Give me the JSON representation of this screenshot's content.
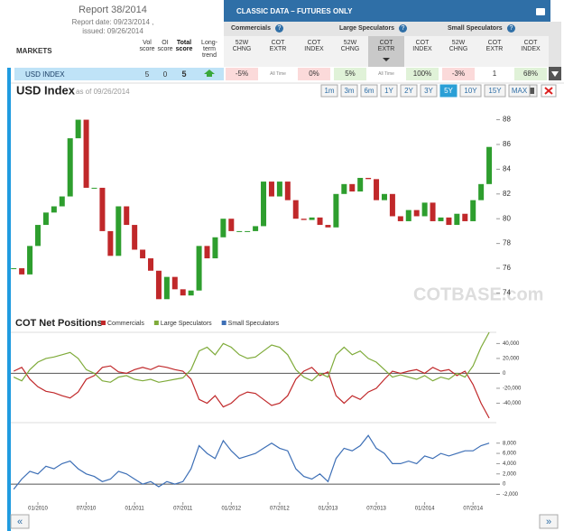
{
  "header": {
    "report": "Report 38/2014",
    "report_date": "Report date: 09/23/2014 ,",
    "issued": "issued: 09/26/2014",
    "panel_title": "CLASSIC DATA – FUTURES ONLY"
  },
  "table": {
    "columns": [
      "MARKETS",
      "Vol score",
      "OI score",
      "Total score",
      "Long-term trend"
    ],
    "groups": [
      {
        "name": "Commercials",
        "columns": [
          "52W CHNG",
          "COT EXTR",
          "COT INDEX"
        ]
      },
      {
        "name": "Large Speculators",
        "columns": [
          "52W CHNG",
          "COT EXTR",
          "COT INDEX"
        ]
      },
      {
        "name": "Small Speculators",
        "columns": [
          "52W CHNG",
          "COT EXTR",
          "COT INDEX"
        ]
      }
    ],
    "rows": [
      {
        "market": "USD INDEX",
        "vol_score": 5,
        "oi_score": 0,
        "total_score": 5,
        "cells": [
          "-5%",
          "All Time",
          "0%",
          "5%",
          "All Time",
          "100%",
          "-3%",
          "1",
          "68%"
        ]
      }
    ]
  },
  "toolbar": {
    "title": "USD Index",
    "as_of": "as of 09/26/2014",
    "ranges": [
      "1m",
      "3m",
      "6m",
      "1Y",
      "2Y",
      "3Y",
      "5Y",
      "10Y",
      "15Y",
      "MAX"
    ],
    "active_range": "5Y",
    "watermark": "COTBASE.com"
  },
  "chart_data": [
    {
      "type": "candlestick",
      "up_color": "#2e9e2e",
      "down_color": "#c0282a",
      "x": [
        "10/2009",
        "11/2009",
        "12/2009",
        "01/2010",
        "02/2010",
        "03/2010",
        "04/2010",
        "05/2010",
        "06/2010",
        "07/2010",
        "08/2010",
        "09/2010",
        "10/2010",
        "11/2010",
        "12/2010",
        "01/2011",
        "02/2011",
        "03/2011",
        "04/2011",
        "05/2011",
        "06/2011",
        "07/2011",
        "08/2011",
        "09/2011",
        "10/2011",
        "11/2011",
        "12/2011",
        "01/2012",
        "02/2012",
        "03/2012",
        "04/2012",
        "05/2012",
        "06/2012",
        "07/2012",
        "08/2012",
        "09/2012",
        "10/2012",
        "11/2012",
        "12/2012",
        "01/2013",
        "02/2013",
        "03/2013",
        "04/2013",
        "05/2013",
        "06/2013",
        "07/2013",
        "08/2013",
        "09/2013",
        "10/2013",
        "11/2013",
        "12/2013",
        "01/2014",
        "02/2014",
        "03/2014",
        "04/2014",
        "05/2014",
        "06/2014",
        "07/2014",
        "08/2014",
        "09/2014"
      ],
      "values": [
        76,
        75.5,
        77.8,
        79.5,
        80.5,
        81,
        81.8,
        86.5,
        88,
        82.5,
        82.5,
        79,
        77,
        81,
        79.5,
        77.5,
        76.8,
        75.8,
        73.5,
        75.3,
        74.3,
        73.8,
        74.2,
        77.8,
        76.8,
        78.5,
        80,
        79,
        79,
        79,
        79.4,
        83,
        81.8,
        83,
        81.5,
        80,
        79.9,
        80.1,
        79.5,
        79.3,
        82,
        82.8,
        82.2,
        83.3,
        83.2,
        81.5,
        82,
        80.2,
        79.8,
        80.7,
        80.2,
        81.3,
        79.8,
        80.1,
        79.5,
        80.4,
        79.8,
        81.5,
        82.8,
        85.8
      ],
      "ylim": [
        72.5,
        89.5
      ],
      "yticks": [
        74,
        76,
        78,
        80,
        82,
        84,
        86,
        88
      ]
    },
    {
      "type": "line",
      "title": "COT Net Positions",
      "x": [
        "10/2009",
        "11/2009",
        "12/2009",
        "01/2010",
        "02/2010",
        "03/2010",
        "04/2010",
        "05/2010",
        "06/2010",
        "07/2010",
        "08/2010",
        "09/2010",
        "10/2010",
        "11/2010",
        "12/2010",
        "01/2011",
        "02/2011",
        "03/2011",
        "04/2011",
        "05/2011",
        "06/2011",
        "07/2011",
        "08/2011",
        "09/2011",
        "10/2011",
        "11/2011",
        "12/2011",
        "01/2012",
        "02/2012",
        "03/2012",
        "04/2012",
        "05/2012",
        "06/2012",
        "07/2012",
        "08/2012",
        "09/2012",
        "10/2012",
        "11/2012",
        "12/2012",
        "01/2013",
        "02/2013",
        "03/2013",
        "04/2013",
        "05/2013",
        "06/2013",
        "07/2013",
        "08/2013",
        "09/2013",
        "10/2013",
        "11/2013",
        "12/2013",
        "01/2014",
        "02/2014",
        "03/2014",
        "04/2014",
        "05/2014",
        "06/2014",
        "07/2014",
        "08/2014",
        "09/2014"
      ],
      "xticks": [
        "01/2010",
        "07/2010",
        "01/2011",
        "07/2011",
        "01/2012",
        "07/2012",
        "01/2013",
        "07/2013",
        "01/2014",
        "07/2014"
      ],
      "panels": [
        {
          "ylim": [
            -60000,
            55000
          ],
          "yticks": [
            {
              "value": 40000,
              "label": "40,000"
            },
            {
              "value": 20000,
              "label": "20,000"
            },
            0,
            {
              "value": -20000,
              "label": "-20,000"
            },
            {
              "value": -40000,
              "label": "-40,000"
            }
          ],
          "series": [
            {
              "name": "Commercials",
              "color": "#c0282a",
              "values": [
                3000,
                8000,
                -8000,
                -18000,
                -24000,
                -26000,
                -30000,
                -33000,
                -25000,
                -8000,
                -3000,
                8000,
                10000,
                2000,
                0,
                5000,
                8000,
                5000,
                10000,
                8000,
                5000,
                3000,
                -8000,
                -35000,
                -40000,
                -30000,
                -45000,
                -40000,
                -30000,
                -25000,
                -27000,
                -35000,
                -43000,
                -40000,
                -30000,
                -8000,
                3000,
                8000,
                -3000,
                2000,
                -30000,
                -40000,
                -30000,
                -35000,
                -25000,
                -20000,
                -8000,
                3000,
                0,
                3000,
                5000,
                0,
                8000,
                3000,
                5000,
                -3000,
                3000,
                -15000,
                -40000,
                -60000
              ]
            },
            {
              "name": "Large Speculators",
              "color": "#7fab3a",
              "values": [
                -5000,
                -10000,
                5000,
                15000,
                20000,
                22000,
                25000,
                28000,
                20000,
                5000,
                0,
                -10000,
                -12000,
                -5000,
                -3000,
                -8000,
                -10000,
                -8000,
                -12000,
                -10000,
                -8000,
                -6000,
                5000,
                30000,
                35000,
                25000,
                40000,
                35000,
                25000,
                20000,
                22000,
                30000,
                38000,
                35000,
                25000,
                5000,
                -5000,
                -10000,
                0,
                -5000,
                25000,
                35000,
                25000,
                30000,
                20000,
                15000,
                5000,
                -5000,
                -2000,
                -5000,
                -8000,
                -3000,
                -10000,
                -5000,
                -8000,
                0,
                -5000,
                10000,
                35000,
                55000
              ]
            }
          ]
        },
        {
          "ylim": [
            -3500,
            12000
          ],
          "yticks": [
            {
              "value": 8000,
              "label": "8,000"
            },
            {
              "value": 6000,
              "label": "6,000"
            },
            {
              "value": 4000,
              "label": "4,000"
            },
            {
              "value": 2000,
              "label": "2,000"
            },
            0,
            {
              "value": -2000,
              "label": "-2,000"
            }
          ],
          "series": [
            {
              "name": "Small Speculators",
              "color": "#3d6fb6",
              "values": [
                -1000,
                1000,
                2500,
                2000,
                3500,
                3000,
                4000,
                4500,
                3000,
                2000,
                1500,
                500,
                1000,
                2500,
                2000,
                1000,
                0,
                500,
                -500,
                500,
                0,
                500,
                3000,
                7500,
                6000,
                5000,
                8500,
                6500,
                5000,
                5500,
                6000,
                7000,
                8000,
                7000,
                6500,
                3000,
                1500,
                1000,
                2000,
                500,
                5000,
                7000,
                6500,
                7500,
                9500,
                7000,
                6000,
                4000,
                4000,
                4500,
                4000,
                5500,
                5000,
                6000,
                5500,
                6000,
                6500,
                6500,
                7500,
                8000
              ]
            }
          ]
        }
      ]
    }
  ]
}
